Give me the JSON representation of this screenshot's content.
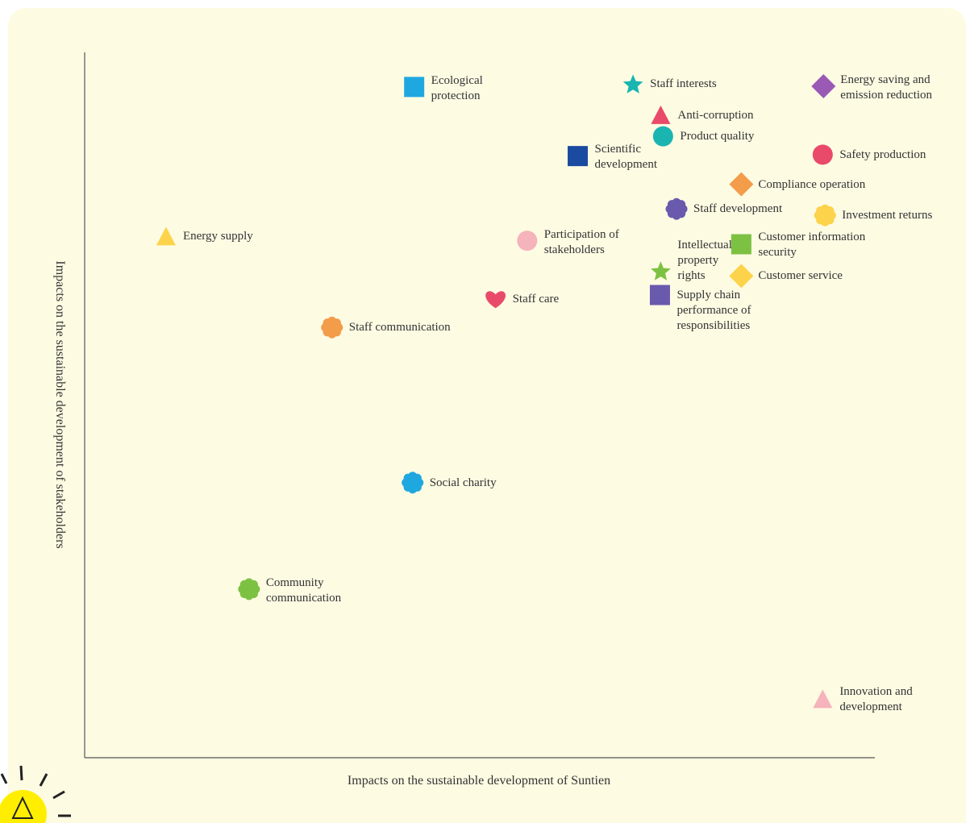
{
  "chart_data": {
    "type": "scatter",
    "xlabel": "Impacts on the sustainable development of Suntien",
    "ylabel": "Impacts on the sustainable development of stakeholders",
    "xlim": [
      0,
      10
    ],
    "ylim": [
      0,
      10
    ],
    "series": [
      {
        "name": "Ecological protection",
        "color": "#1fa8e0",
        "marker": "square",
        "x": 4.17,
        "y": 9.51
      },
      {
        "name": "Staff interests",
        "color": "#1ab5b0",
        "marker": "star",
        "x": 6.94,
        "y": 9.55
      },
      {
        "name": "Energy saving and emission reduction",
        "color": "#9b59b6",
        "marker": "diamond",
        "x": 9.35,
        "y": 9.52
      },
      {
        "name": "Anti-corruption",
        "color": "#e94a6a",
        "marker": "triangle",
        "x": 7.29,
        "y": 9.11
      },
      {
        "name": "Product quality",
        "color": "#1ab5b0",
        "marker": "circle",
        "x": 7.32,
        "y": 8.81
      },
      {
        "name": "Scientific development",
        "color": "#1a4ba0",
        "marker": "square",
        "x": 6.24,
        "y": 8.53
      },
      {
        "name": "Safety production",
        "color": "#e94a6a",
        "marker": "circle",
        "x": 9.34,
        "y": 8.55
      },
      {
        "name": "Compliance operation",
        "color": "#f39c4a",
        "marker": "diamond",
        "x": 8.31,
        "y": 8.13
      },
      {
        "name": "Staff development",
        "color": "#6a5aad",
        "marker": "flower",
        "x": 7.49,
        "y": 7.78
      },
      {
        "name": "Investment returns",
        "color": "#fcd34a",
        "marker": "flower",
        "x": 9.37,
        "y": 7.69
      },
      {
        "name": "Energy supply",
        "color": "#fcd34a",
        "marker": "triangle",
        "x": 1.03,
        "y": 7.39
      },
      {
        "name": "Participation of stakeholders",
        "color": "#f5b3bb",
        "marker": "circle",
        "x": 5.6,
        "y": 7.33
      },
      {
        "name": "Customer information security",
        "color": "#7dc143",
        "marker": "square",
        "x": 8.31,
        "y": 7.28
      },
      {
        "name": "Intellectual property rights",
        "color": "#7dc143",
        "marker": "star",
        "x": 7.29,
        "y": 6.9
      },
      {
        "name": "Customer service",
        "color": "#fcd34a",
        "marker": "diamond",
        "x": 8.31,
        "y": 6.83
      },
      {
        "name": "Supply chain performance of responsibilities",
        "color": "#6a5aad",
        "marker": "square",
        "x": 7.28,
        "y": 6.56
      },
      {
        "name": "Staff care",
        "color": "#e94a6a",
        "marker": "heart",
        "x": 5.2,
        "y": 6.5
      },
      {
        "name": "Staff communication",
        "color": "#f39c4a",
        "marker": "flower",
        "x": 3.13,
        "y": 6.1
      },
      {
        "name": "Social charity",
        "color": "#1fa8e0",
        "marker": "flower",
        "x": 4.15,
        "y": 3.9
      },
      {
        "name": "Community communication",
        "color": "#7dc143",
        "marker": "flower",
        "x": 2.08,
        "y": 2.39
      },
      {
        "name": "Innovation and development",
        "color": "#f5b3bb",
        "marker": "triangle",
        "x": 9.34,
        "y": 0.83
      }
    ]
  }
}
